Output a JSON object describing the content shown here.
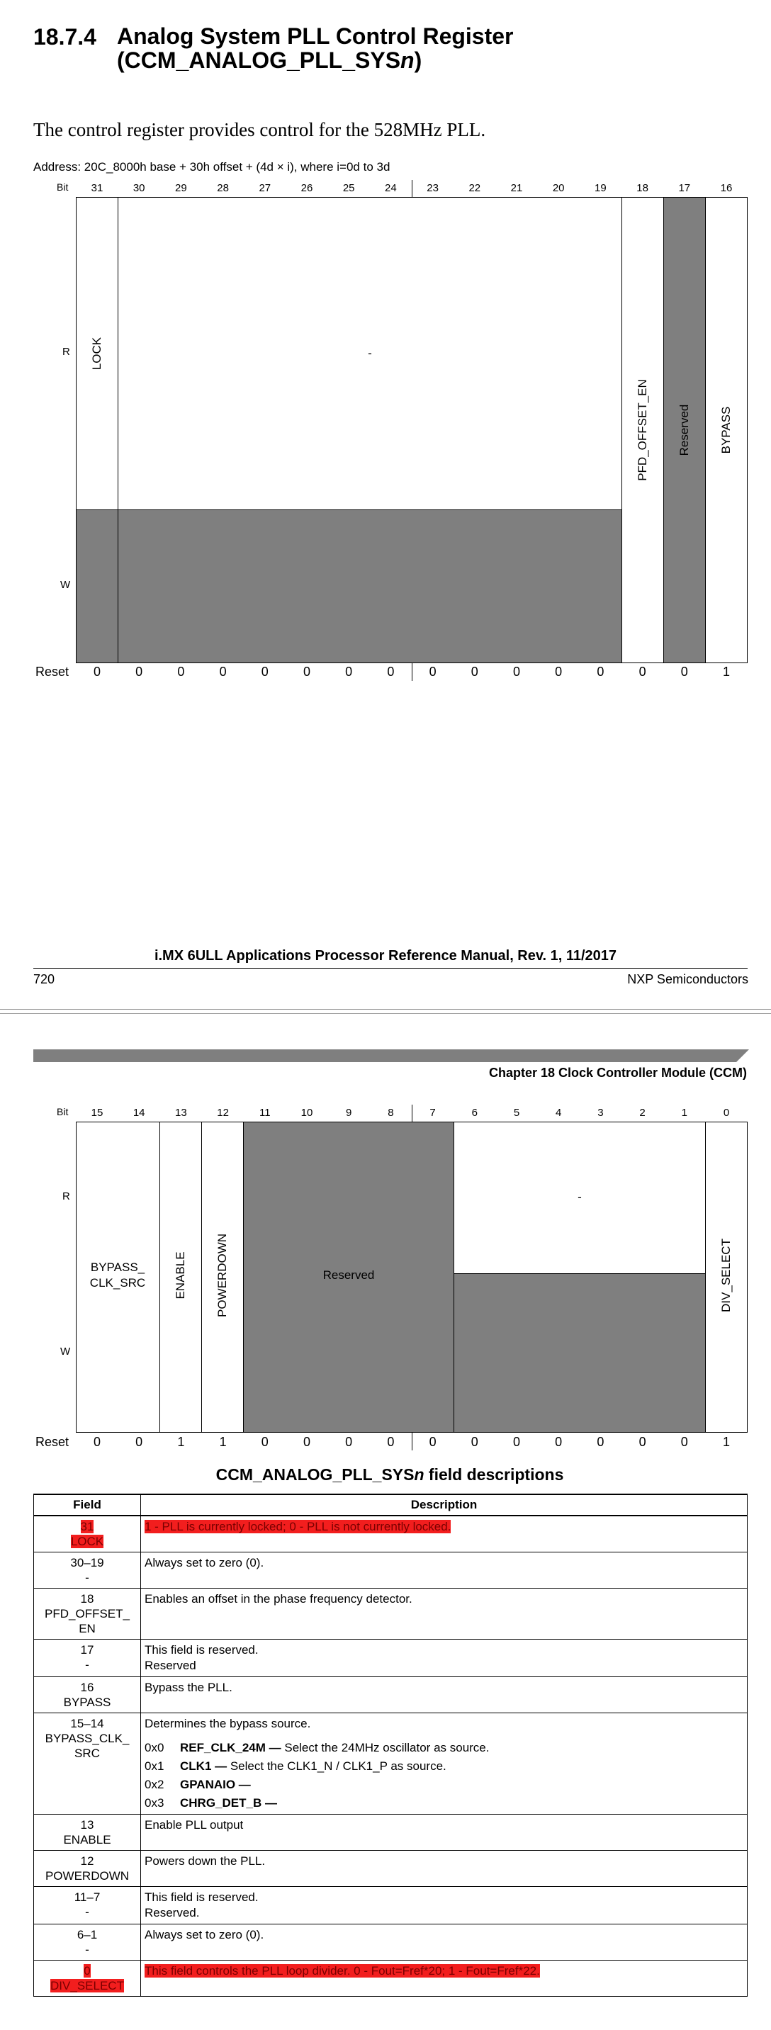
{
  "section": {
    "number": "18.7.4",
    "title_line1": "Analog System PLL Control Register",
    "title_line2_prefix": "(CCM_ANALOG_PLL_SYS",
    "title_line2_italic": "n",
    "title_line2_suffix": ")"
  },
  "intro": "The control register provides control for the 528MHz PLL.",
  "address": "Address: 20C_8000h base + 30h offset + (4d × i), where i=0d to 3d",
  "labels": {
    "bit": "Bit",
    "r": "R",
    "w": "W",
    "reset": "Reset"
  },
  "upper_register": {
    "bits": [
      "31",
      "30",
      "29",
      "28",
      "27",
      "26",
      "25",
      "24",
      "23",
      "22",
      "21",
      "20",
      "19",
      "18",
      "17",
      "16"
    ],
    "reset": [
      "0",
      "0",
      "0",
      "0",
      "0",
      "0",
      "0",
      "0",
      "0",
      "0",
      "0",
      "0",
      "0",
      "0",
      "0",
      "1"
    ],
    "fields": {
      "lock": "LOCK",
      "dash": "-",
      "pfd_offset_en": "PFD_OFFSET_EN",
      "reserved": "Reserved",
      "bypass": "BYPASS"
    }
  },
  "footer": {
    "title": "i.MX 6ULL Applications Processor Reference Manual, Rev. 1, 11/2017",
    "page": "720",
    "vendor": "NXP Semiconductors"
  },
  "chapter_header": "Chapter 18 Clock Controller Module (CCM)",
  "lower_register": {
    "bits": [
      "15",
      "14",
      "13",
      "12",
      "11",
      "10",
      "9",
      "8",
      "7",
      "6",
      "5",
      "4",
      "3",
      "2",
      "1",
      "0"
    ],
    "reset": [
      "0",
      "0",
      "1",
      "1",
      "0",
      "0",
      "0",
      "0",
      "0",
      "0",
      "0",
      "0",
      "0",
      "0",
      "0",
      "1"
    ],
    "fields": {
      "bypass_clk_src_line1": "BYPASS_",
      "bypass_clk_src_line2": "CLK_SRC",
      "enable": "ENABLE",
      "powerdown": "POWERDOWN",
      "reserved": "Reserved",
      "dash": "-",
      "div_select": "DIV_SELECT"
    }
  },
  "table": {
    "title_prefix": "CCM_ANALOG_PLL_SYS",
    "title_italic": "n",
    "title_suffix": " field descriptions",
    "headers": {
      "field": "Field",
      "description": "Description"
    },
    "rows": [
      {
        "bits": "31",
        "name": "LOCK",
        "desc": "1 - PLL is currently locked; 0 - PLL is not currently locked.",
        "highlight": true
      },
      {
        "bits": "30–19",
        "name": "-",
        "desc": "Always set to zero (0)."
      },
      {
        "bits": "18",
        "name": "PFD_OFFSET_",
        "name2": "EN",
        "desc": "Enables an offset in the phase frequency detector."
      },
      {
        "bits": "17",
        "name": "-",
        "desc": "This field is reserved.",
        "desc2": "Reserved"
      },
      {
        "bits": "16",
        "name": "BYPASS",
        "desc": "Bypass the PLL."
      },
      {
        "bits": "15–14",
        "name": "BYPASS_CLK_",
        "name2": "SRC",
        "desc": "Determines the bypass source."
      },
      {
        "bits": "13",
        "name": "ENABLE",
        "desc": "Enable PLL output"
      },
      {
        "bits": "12",
        "name": "POWERDOWN",
        "desc": "Powers down the PLL."
      },
      {
        "bits": "11–7",
        "name": "-",
        "desc": "This field is reserved.",
        "desc2": "Reserved."
      },
      {
        "bits": "6–1",
        "name": "-",
        "desc": "Always set to zero (0)."
      },
      {
        "bits": "0",
        "name": "DIV_SELECT",
        "desc": "This field controls the PLL loop divider. 0 - Fout=Fref*20; 1 - Fout=Fref*22.",
        "highlight": true
      }
    ],
    "bypass_enums": [
      {
        "code": "0x0",
        "name": "REF_CLK_24M —",
        "text": " Select the 24MHz oscillator as source."
      },
      {
        "code": "0x1",
        "name": "CLK1 —",
        "text": " Select the CLK1_N / CLK1_P as source."
      },
      {
        "code": "0x2",
        "name": "GPANAIO —",
        "text": ""
      },
      {
        "code": "0x3",
        "name": "CHRG_DET_B —",
        "text": ""
      }
    ]
  }
}
